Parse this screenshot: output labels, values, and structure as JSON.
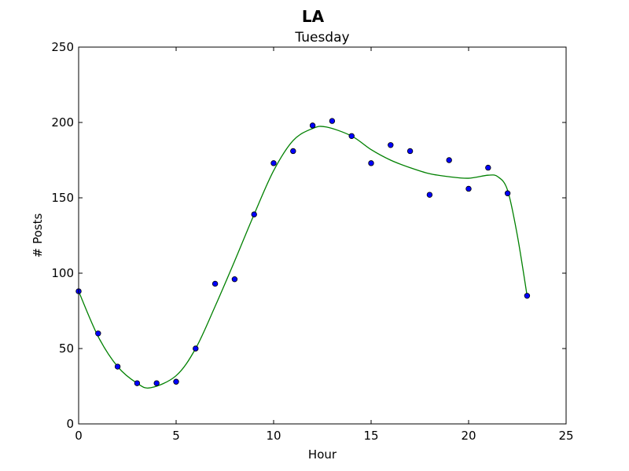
{
  "chart_data": {
    "type": "scatter",
    "suptitle": "LA",
    "title": "Tuesday",
    "xlabel": "Hour",
    "ylabel": "# Posts",
    "xlim": [
      0,
      25
    ],
    "ylim": [
      0,
      250
    ],
    "xticks": [
      0,
      5,
      10,
      15,
      20,
      25
    ],
    "yticks": [
      0,
      50,
      100,
      150,
      200,
      250
    ],
    "grid": false,
    "series": [
      {
        "kind": "scatter",
        "color": "#0000ff",
        "x": [
          0,
          1,
          2,
          3,
          4,
          5,
          6,
          7,
          8,
          9,
          10,
          11,
          12,
          13,
          14,
          15,
          16,
          17,
          18,
          19,
          20,
          21,
          22,
          23
        ],
        "y": [
          88,
          60,
          38,
          27,
          27,
          28,
          50,
          93,
          96,
          139,
          173,
          181,
          198,
          201,
          191,
          173,
          185,
          181,
          152,
          175,
          156,
          170,
          153,
          85
        ]
      },
      {
        "kind": "line",
        "color": "#008000",
        "x": [
          0,
          1,
          2,
          3,
          3.7,
          5,
          6,
          7,
          8,
          9,
          10,
          11,
          12,
          12.7,
          14,
          15,
          16,
          17,
          18,
          19,
          20,
          21,
          21.5,
          22,
          22.5,
          23
        ],
        "y": [
          88,
          58,
          38,
          27,
          24,
          32,
          50,
          78,
          108,
          139,
          168,
          188,
          196,
          197,
          191,
          182,
          175,
          170,
          166,
          164,
          163,
          165,
          164,
          155,
          125,
          85
        ]
      }
    ]
  }
}
